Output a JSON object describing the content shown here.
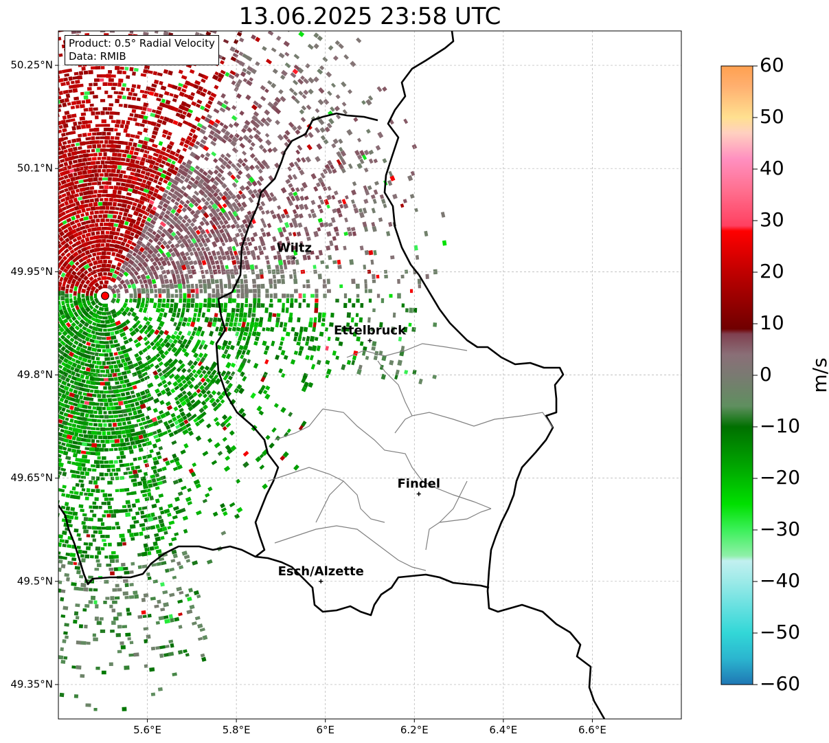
{
  "title": "13.06.2025 23:58 UTC",
  "info": {
    "product": "Product: 0.5° Radial Velocity",
    "data": "Data: RMIB"
  },
  "map": {
    "lon_range": [
      5.4,
      6.8
    ],
    "lat_range": [
      49.3,
      50.3
    ],
    "lon_ticks": [
      {
        "v": 5.6,
        "label": "5.6°E"
      },
      {
        "v": 5.8,
        "label": "5.8°E"
      },
      {
        "v": 6.0,
        "label": "6°E"
      },
      {
        "v": 6.2,
        "label": "6.2°E"
      },
      {
        "v": 6.4,
        "label": "6.4°E"
      },
      {
        "v": 6.6,
        "label": "6.6°E"
      }
    ],
    "lat_ticks": [
      {
        "v": 50.25,
        "label": "50.25°N"
      },
      {
        "v": 50.1,
        "label": "50.1°N"
      },
      {
        "v": 49.95,
        "label": "49.95°N"
      },
      {
        "v": 49.8,
        "label": "49.8°N"
      },
      {
        "v": 49.65,
        "label": "49.65°N"
      },
      {
        "v": 49.5,
        "label": "49.5°N"
      },
      {
        "v": 49.35,
        "label": "49.35°N"
      }
    ],
    "radar_site": {
      "lon": 5.505,
      "lat": 49.915
    },
    "cities": [
      {
        "name": "Wiltz",
        "lon": 5.93,
        "lat": 49.97
      },
      {
        "name": "Ettelbruck",
        "lon": 6.1,
        "lat": 49.85
      },
      {
        "name": "Findel",
        "lon": 6.21,
        "lat": 49.627
      },
      {
        "name": "Esch/Alzette",
        "lon": 5.99,
        "lat": 49.5
      }
    ],
    "colors": {
      "border": "#000000",
      "canton_border": "#808080",
      "radar_marker": "#ff0000"
    }
  },
  "colorbar": {
    "label": "m/s",
    "min": -60,
    "max": 60,
    "ticks": [
      {
        "v": 60,
        "label": "60"
      },
      {
        "v": 50,
        "label": "50"
      },
      {
        "v": 40,
        "label": "40"
      },
      {
        "v": 30,
        "label": "30"
      },
      {
        "v": 20,
        "label": "20"
      },
      {
        "v": 10,
        "label": "10"
      },
      {
        "v": 0,
        "label": "0"
      },
      {
        "v": -10,
        "label": "−10"
      },
      {
        "v": -20,
        "label": "−20"
      },
      {
        "v": -30,
        "label": "−30"
      },
      {
        "v": -40,
        "label": "−40"
      },
      {
        "v": -50,
        "label": "−50"
      },
      {
        "v": -60,
        "label": "−60"
      }
    ],
    "stops": [
      {
        "v": -60,
        "color": "#1f77b4"
      },
      {
        "v": -55,
        "color": "#2bb5cf"
      },
      {
        "v": -50,
        "color": "#32d7d7"
      },
      {
        "v": -45,
        "color": "#66e0e0"
      },
      {
        "v": -40,
        "color": "#9ceae8"
      },
      {
        "v": -36,
        "color": "#c2f0f0"
      },
      {
        "v": -35,
        "color": "#8ff0a8"
      },
      {
        "v": -30,
        "color": "#3cf05a"
      },
      {
        "v": -25,
        "color": "#00e000"
      },
      {
        "v": -18,
        "color": "#00a800"
      },
      {
        "v": -10,
        "color": "#007000"
      },
      {
        "v": -6,
        "color": "#5f8f5f"
      },
      {
        "v": 0,
        "color": "#7a7a72"
      },
      {
        "v": 4,
        "color": "#8a6f77"
      },
      {
        "v": 8,
        "color": "#804050"
      },
      {
        "v": 9,
        "color": "#700000"
      },
      {
        "v": 18,
        "color": "#b00000"
      },
      {
        "v": 28,
        "color": "#ff0000"
      },
      {
        "v": 29,
        "color": "#ff4060"
      },
      {
        "v": 36,
        "color": "#ff7090"
      },
      {
        "v": 42,
        "color": "#ff90c0"
      },
      {
        "v": 47,
        "color": "#ffd0c0"
      },
      {
        "v": 50,
        "color": "#ffe090"
      },
      {
        "v": 56,
        "color": "#ffb070"
      },
      {
        "v": 60,
        "color": "#ffa050"
      }
    ]
  }
}
